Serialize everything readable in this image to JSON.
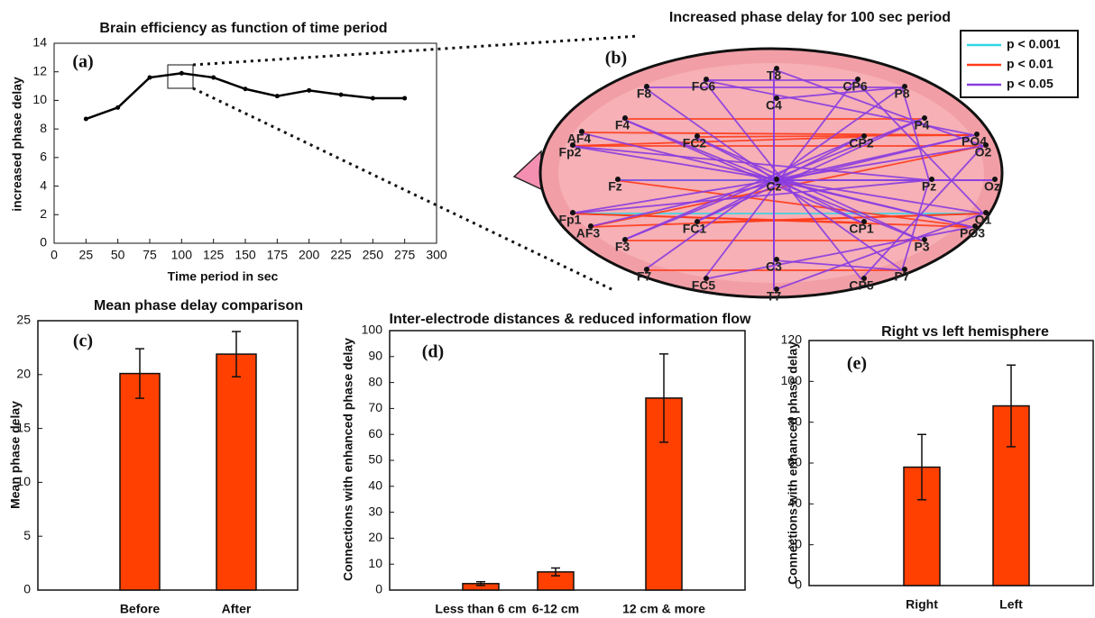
{
  "chart_data": [
    {
      "type": "line",
      "panel_label": "(a)",
      "title": "Brain efficiency as function of time  period",
      "x_label": "Time period in sec",
      "y_label": "increased phase delay",
      "x": [
        25,
        50,
        75,
        100,
        125,
        150,
        175,
        200,
        225,
        250,
        275
      ],
      "values": [
        8.7,
        9.5,
        11.6,
        11.9,
        11.6,
        10.8,
        10.3,
        10.7,
        10.4,
        10.15,
        10.15
      ],
      "color": "#000000",
      "xlim": [
        0,
        300
      ],
      "xticks": [
        0,
        25,
        50,
        75,
        100,
        125,
        150,
        175,
        200,
        225,
        250,
        275,
        300
      ],
      "ylim": [
        0,
        14
      ],
      "yticks": [
        0,
        2,
        4,
        6,
        8,
        10,
        12,
        14
      ]
    },
    {
      "type": "network",
      "panel_label": "(b)",
      "title": "Increased phase delay for 100 sec period",
      "series": [
        {
          "name": "p < 0.001",
          "color": "#33d6e6"
        },
        {
          "name": "p < 0.01",
          "color": "#ff3b1a"
        },
        {
          "name": "p < 0.05",
          "color": "#8a3ce0"
        }
      ],
      "nodes": [
        "T8",
        "FC6",
        "CP6",
        "F8",
        "P8",
        "C4",
        "F4",
        "P4",
        "AF4",
        "FC2",
        "CP2",
        "PO4",
        "Fp2",
        "O2",
        "Fz",
        "Cz",
        "Pz",
        "Oz",
        "Fp1",
        "O1",
        "AF3",
        "FC1",
        "CP1",
        "PO3",
        "F3",
        "P3",
        "C3",
        "F7",
        "P7",
        "FC5",
        "CP5",
        "T7"
      ],
      "edges": [
        [
          18,
          19,
          0
        ],
        [
          14,
          16,
          0
        ],
        [
          18,
          23,
          1
        ],
        [
          12,
          13,
          1
        ],
        [
          8,
          11,
          1
        ],
        [
          20,
          19,
          1
        ],
        [
          24,
          25,
          1
        ],
        [
          18,
          22,
          1
        ],
        [
          12,
          10,
          1
        ],
        [
          27,
          28,
          1
        ],
        [
          6,
          7,
          1
        ],
        [
          20,
          13,
          1
        ],
        [
          14,
          23,
          1
        ],
        [
          9,
          11,
          1
        ],
        [
          21,
          19,
          1
        ],
        [
          3,
          4,
          2
        ],
        [
          1,
          2,
          2
        ],
        [
          0,
          31,
          2
        ],
        [
          5,
          26,
          2
        ],
        [
          6,
          25,
          2
        ],
        [
          24,
          7,
          2
        ],
        [
          8,
          23,
          2
        ],
        [
          20,
          11,
          2
        ],
        [
          12,
          19,
          2
        ],
        [
          18,
          13,
          2
        ],
        [
          9,
          22,
          2
        ],
        [
          21,
          10,
          2
        ],
        [
          14,
          17,
          2
        ],
        [
          15,
          17,
          2
        ],
        [
          1,
          30,
          2
        ],
        [
          29,
          2,
          2
        ],
        [
          3,
          28,
          2
        ],
        [
          27,
          4,
          2
        ],
        [
          0,
          26,
          2
        ],
        [
          31,
          5,
          2
        ],
        [
          1,
          11,
          2
        ],
        [
          29,
          23,
          2
        ],
        [
          2,
          19,
          2
        ],
        [
          30,
          13,
          2
        ],
        [
          4,
          16,
          2
        ],
        [
          28,
          16,
          2
        ],
        [
          6,
          22,
          2
        ],
        [
          24,
          10,
          2
        ],
        [
          15,
          11,
          2
        ],
        [
          15,
          23,
          2
        ],
        [
          5,
          4,
          2
        ],
        [
          26,
          28,
          2
        ],
        [
          18,
          16,
          2
        ],
        [
          12,
          16,
          2
        ],
        [
          9,
          25,
          2
        ],
        [
          21,
          7,
          2
        ],
        [
          0,
          13,
          2
        ],
        [
          31,
          19,
          2
        ]
      ]
    },
    {
      "type": "bar",
      "panel_label": "(c)",
      "title": "Mean phase delay comparison",
      "y_label": "Mean phase delay",
      "categories": [
        "Before",
        "After"
      ],
      "values": [
        20.1,
        21.9
      ],
      "errors": [
        2.3,
        2.1
      ],
      "color": "#ff4000",
      "ylim": [
        0,
        25
      ],
      "yticks": [
        0,
        5,
        10,
        15,
        20,
        25
      ]
    },
    {
      "type": "bar",
      "panel_label": "(d)",
      "title": "Inter-electrode distances & reduced information flow",
      "y_label": "Connections with enhanced phase delay",
      "categories": [
        "Less than 6 cm",
        "6-12 cm",
        "12 cm & more"
      ],
      "values": [
        2.5,
        7,
        74
      ],
      "errors": [
        0.7,
        1.5,
        17
      ],
      "color": "#ff4000",
      "ylim": [
        0,
        100
      ],
      "yticks": [
        0,
        10,
        20,
        30,
        40,
        50,
        60,
        70,
        80,
        90,
        100
      ]
    },
    {
      "type": "bar",
      "panel_label": "(e)",
      "title": "Right vs left hemisphere",
      "y_label": "Connections with enhanced phase delay",
      "categories": [
        "Right",
        "Left"
      ],
      "values": [
        58,
        88
      ],
      "errors": [
        16,
        20
      ],
      "color": "#ff4000",
      "ylim": [
        0,
        120
      ],
      "yticks": [
        0,
        20,
        40,
        60,
        80,
        100,
        120
      ]
    }
  ]
}
